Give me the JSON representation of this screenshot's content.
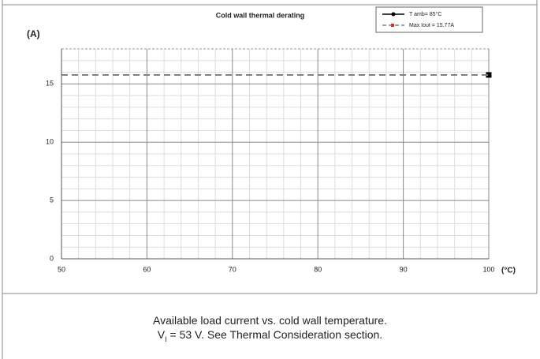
{
  "chart_data": {
    "type": "line",
    "title": "Cold wall thermal derating",
    "y_label": "(A)",
    "x_label": "(°C)",
    "xlim": [
      50,
      100
    ],
    "xticks": [
      50,
      60,
      70,
      80,
      90,
      100
    ],
    "xminor": [
      52,
      54,
      56,
      58,
      62,
      64,
      66,
      68,
      72,
      74,
      76,
      78,
      82,
      84,
      86,
      88,
      92,
      94,
      96,
      98
    ],
    "ylim": [
      0,
      18
    ],
    "yticks": [
      0,
      5,
      10,
      15
    ],
    "yminor": [
      1,
      2,
      3,
      4,
      6,
      7,
      8,
      9,
      11,
      12,
      13,
      14,
      16,
      17
    ],
    "grid": true,
    "legend": "upper right",
    "series": [
      {
        "name": "T amb= 85°C",
        "color": "#000000",
        "x": [
          100
        ],
        "values": [
          15.77
        ]
      },
      {
        "name": "Max Iout = 15.77A",
        "color": "#808080",
        "marker_color": "#cc3333",
        "dashed": true,
        "x": [
          50,
          100
        ],
        "values": [
          15.77,
          15.77
        ]
      }
    ]
  },
  "caption": {
    "line1": "Available load current vs. cold wall temperature.",
    "symbol": "V",
    "subscript": "I",
    "rest": "= 53 V. See Thermal Consideration section."
  }
}
